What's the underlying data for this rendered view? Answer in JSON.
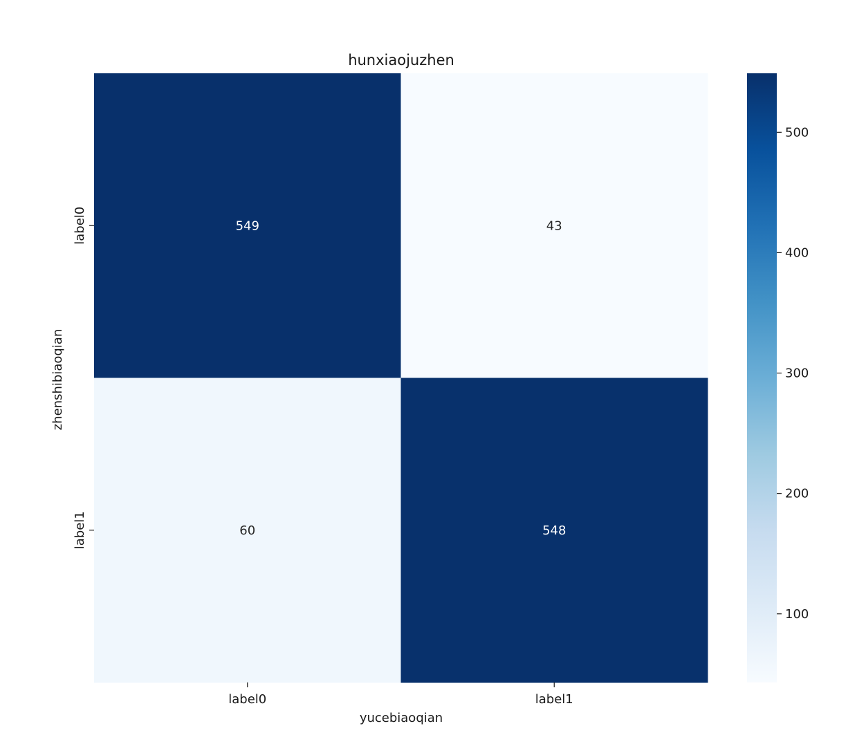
{
  "chart_data": {
    "type": "heatmap",
    "title": "hunxiaojuzhen",
    "xlabel": "yucebiaoqian",
    "ylabel": "zhenshibiaoqian",
    "x_categories": [
      "label0",
      "label1"
    ],
    "y_categories": [
      "label0",
      "label1"
    ],
    "values": [
      [
        549,
        43
      ],
      [
        60,
        548
      ]
    ],
    "colormap": "Blues",
    "colorbar": {
      "range": [
        43,
        549
      ],
      "ticks": [
        "100",
        "200",
        "300",
        "400",
        "500"
      ]
    },
    "colors": {
      "cmap_low": "#f7fbff",
      "cmap_high": "#08306b",
      "label_on_dark": "#ffffff",
      "label_on_light": "#262626"
    }
  }
}
